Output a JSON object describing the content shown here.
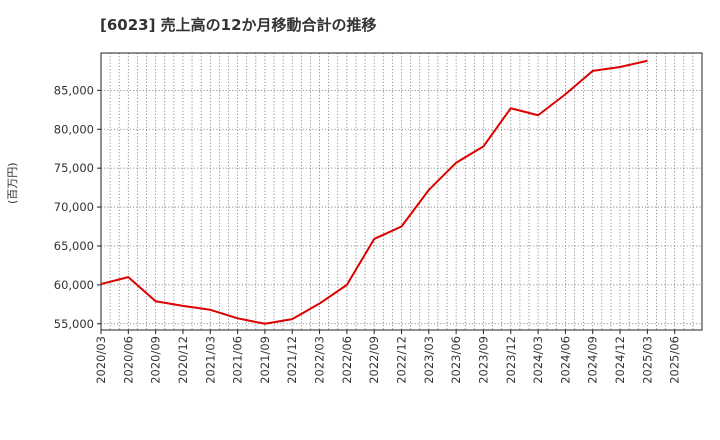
{
  "chart_data": {
    "type": "line",
    "title": "[6023]  売上高の12か月移動合計の推移",
    "ylabel": "(百万円)",
    "xlabel": "",
    "ylim": [
      54200,
      89800
    ],
    "y_ticks": [
      55000,
      60000,
      65000,
      70000,
      75000,
      80000,
      85000
    ],
    "y_tick_labels": [
      "55,000",
      "60,000",
      "65,000",
      "70,000",
      "75,000",
      "80,000",
      "85,000"
    ],
    "x_ticks": [
      "2020/03",
      "2020/06",
      "2020/09",
      "2020/12",
      "2021/03",
      "2021/06",
      "2021/09",
      "2021/12",
      "2022/03",
      "2022/06",
      "2022/09",
      "2022/12",
      "2023/03",
      "2023/06",
      "2023/09",
      "2023/12",
      "2024/03",
      "2024/06",
      "2024/09",
      "2024/12",
      "2025/03",
      "2025/06"
    ],
    "grid": true,
    "series": [
      {
        "name": "売上高12か月移動合計",
        "color": "#dd0000",
        "x": [
          "2020/03",
          "2020/06",
          "2020/09",
          "2020/12",
          "2021/03",
          "2021/06",
          "2021/09",
          "2021/12",
          "2022/03",
          "2022/06",
          "2022/09",
          "2022/12",
          "2023/03",
          "2023/06",
          "2023/09",
          "2023/12",
          "2024/03",
          "2024/06",
          "2024/09",
          "2024/12",
          "2025/03"
        ],
        "values": [
          60100,
          61000,
          57900,
          57300,
          56800,
          55700,
          55000,
          55600,
          57600,
          60000,
          65900,
          67500,
          72200,
          75700,
          77800,
          82700,
          81800,
          84500,
          87500,
          88000,
          88800
        ]
      }
    ]
  }
}
